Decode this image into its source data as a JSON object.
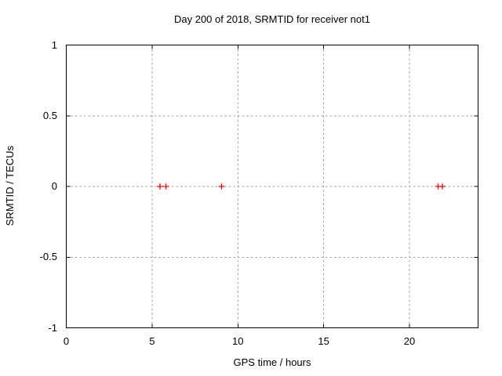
{
  "window": {
    "background": "#ffffff"
  },
  "chart_data": {
    "type": "scatter",
    "title": "Day 200 of 2018, SRMTID for receiver not1",
    "xlabel": "GPS time / hours",
    "ylabel": "SRMTID / TECUs",
    "xlim": [
      0,
      24
    ],
    "ylim": [
      -1,
      1
    ],
    "xticks": [
      0,
      5,
      10,
      15,
      20
    ],
    "yticks": [
      1,
      0.5,
      0,
      -0.5,
      -1
    ],
    "grid": true,
    "legend_position": "none",
    "marker_style": "plus",
    "colors": {
      "marker": "#ff0000",
      "grid": "#a6a6a6",
      "axis": "#000000",
      "text": "#000000"
    },
    "series": [
      {
        "name": "SRMTID",
        "color": "#ff0000",
        "x": [
          5.46,
          5.81,
          9.05,
          21.67,
          21.92
        ],
        "y": [
          0,
          0,
          0,
          0,
          0
        ]
      }
    ]
  }
}
